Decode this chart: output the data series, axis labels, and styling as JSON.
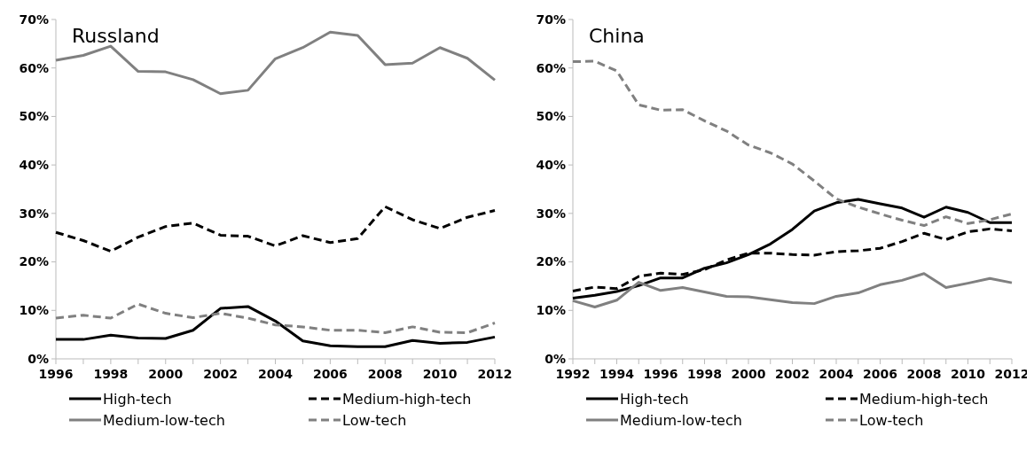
{
  "chart_data": [
    {
      "type": "line",
      "title": "Russland",
      "x": [
        1996,
        1997,
        1998,
        1999,
        2000,
        2001,
        2002,
        2003,
        2004,
        2005,
        2006,
        2007,
        2008,
        2009,
        2010,
        2011,
        2012
      ],
      "xlim": [
        1996,
        2012
      ],
      "xticks": [
        1996,
        {
          "value": 1997,
          "label": null
        },
        1998,
        {
          "value": 1999,
          "label": null
        },
        2000,
        {
          "value": 2001,
          "label": null
        },
        2002,
        {
          "value": 2003,
          "label": null
        },
        2004,
        {
          "value": 2005,
          "label": null
        },
        2006,
        {
          "value": 2007,
          "label": null
        },
        2008,
        {
          "value": 2009,
          "label": null
        },
        2010,
        {
          "value": 2011,
          "label": null
        },
        2012
      ],
      "ylim": [
        0,
        70
      ],
      "yticks": [
        {
          "value": 0,
          "label": "0%"
        },
        {
          "value": 10,
          "label": "10%"
        },
        {
          "value": 20,
          "label": "20%"
        },
        {
          "value": 30,
          "label": "30%"
        },
        {
          "value": 40,
          "label": "40%"
        },
        {
          "value": 50,
          "label": "50%"
        },
        {
          "value": 60,
          "label": "60%"
        },
        {
          "value": 70,
          "label": "70%"
        }
      ],
      "legend": "bottom",
      "grid": false,
      "series": [
        {
          "name": "High-tech",
          "color": "#000000",
          "line_style": "solid",
          "values": [
            4.0,
            4.0,
            4.9,
            4.3,
            4.2,
            5.9,
            10.4,
            10.8,
            7.8,
            3.7,
            2.7,
            2.5,
            2.5,
            3.8,
            3.2,
            3.4,
            4.5
          ]
        },
        {
          "name": "Medium-high-tech",
          "color": "#000000",
          "line_style": "dashed",
          "values": [
            26.1,
            24.4,
            22.2,
            25.1,
            27.3,
            28.0,
            25.5,
            25.3,
            23.3,
            25.4,
            24.0,
            24.8,
            31.4,
            28.7,
            26.9,
            29.2,
            30.6
          ]
        },
        {
          "name": "Medium-low-tech",
          "color": "#808080",
          "line_style": "solid",
          "values": [
            61.6,
            62.6,
            64.5,
            59.3,
            59.2,
            57.6,
            54.7,
            55.4,
            61.9,
            64.2,
            67.4,
            66.7,
            60.7,
            61.0,
            64.2,
            62.0,
            57.5
          ]
        },
        {
          "name": "Low-tech",
          "color": "#808080",
          "line_style": "dashed",
          "values": [
            8.4,
            9.0,
            8.4,
            11.3,
            9.4,
            8.5,
            9.4,
            8.4,
            7.0,
            6.6,
            5.9,
            5.9,
            5.4,
            6.6,
            5.5,
            5.4,
            7.4
          ]
        }
      ]
    },
    {
      "type": "line",
      "title": "China",
      "x": [
        1992,
        1993,
        1994,
        1995,
        1996,
        1997,
        1998,
        1999,
        2000,
        2001,
        2002,
        2003,
        2004,
        2005,
        2006,
        2007,
        2008,
        2009,
        2010,
        2011,
        2012
      ],
      "xlim": [
        1992,
        2012
      ],
      "xticks": [
        1992,
        {
          "value": 1993,
          "label": null
        },
        1994,
        {
          "value": 1995,
          "label": null
        },
        1996,
        {
          "value": 1997,
          "label": null
        },
        1998,
        {
          "value": 1999,
          "label": null
        },
        2000,
        {
          "value": 2001,
          "label": null
        },
        2002,
        {
          "value": 2003,
          "label": null
        },
        2004,
        {
          "value": 2005,
          "label": null
        },
        2006,
        {
          "value": 2007,
          "label": null
        },
        2008,
        {
          "value": 2009,
          "label": null
        },
        2010,
        {
          "value": 2011,
          "label": null
        },
        2012
      ],
      "ylim": [
        0,
        70
      ],
      "yticks": [
        {
          "value": 0,
          "label": "0%"
        },
        {
          "value": 10,
          "label": "10%"
        },
        {
          "value": 20,
          "label": "20%"
        },
        {
          "value": 30,
          "label": "30%"
        },
        {
          "value": 40,
          "label": "40%"
        },
        {
          "value": 50,
          "label": "50%"
        },
        {
          "value": 60,
          "label": "60%"
        },
        {
          "value": 70,
          "label": "70%"
        }
      ],
      "legend": "bottom",
      "grid": false,
      "series": [
        {
          "name": "High-tech",
          "color": "#000000",
          "line_style": "solid",
          "values": [
            12.5,
            13.1,
            13.9,
            15.1,
            16.7,
            16.7,
            18.7,
            19.8,
            21.5,
            23.7,
            26.7,
            30.5,
            32.2,
            32.9,
            32.0,
            31.1,
            29.2,
            31.3,
            30.2,
            28.1,
            28.1
          ]
        },
        {
          "name": "Medium-high-tech",
          "color": "#000000",
          "line_style": "dashed",
          "values": [
            14.0,
            14.8,
            14.5,
            17.0,
            17.7,
            17.4,
            18.4,
            20.4,
            21.8,
            21.8,
            21.5,
            21.4,
            22.1,
            22.3,
            22.8,
            24.2,
            25.9,
            24.6,
            26.2,
            26.8,
            26.4
          ]
        },
        {
          "name": "Medium-low-tech",
          "color": "#808080",
          "line_style": "solid",
          "values": [
            12.0,
            10.7,
            12.1,
            15.8,
            14.1,
            14.7,
            13.8,
            12.9,
            12.8,
            12.2,
            11.6,
            11.4,
            12.9,
            13.6,
            15.3,
            16.2,
            17.6,
            14.7,
            15.6,
            16.6,
            15.7
          ]
        },
        {
          "name": "Low-tech",
          "color": "#808080",
          "line_style": "dashed",
          "values": [
            61.3,
            61.4,
            59.4,
            52.4,
            51.3,
            51.4,
            49.1,
            47.0,
            44.1,
            42.5,
            40.2,
            36.7,
            33.0,
            31.3,
            29.9,
            28.6,
            27.5,
            29.3,
            27.9,
            28.7,
            29.9
          ]
        }
      ]
    }
  ]
}
